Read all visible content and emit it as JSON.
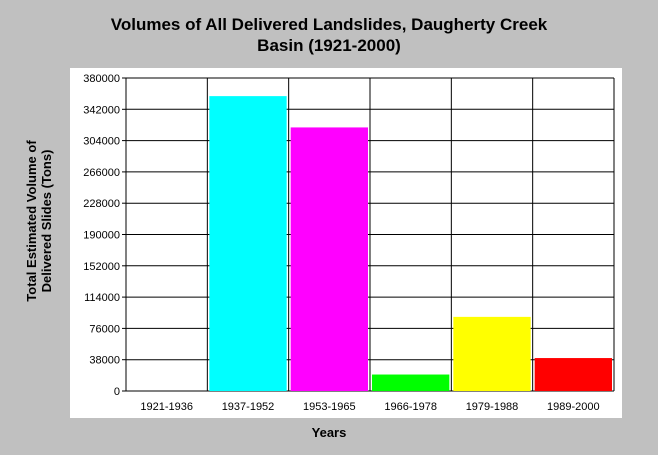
{
  "chart_data": {
    "type": "bar",
    "title_lines": [
      "Volumes of All Delivered Landslides, Daugherty Creek",
      "Basin (1921-2000)"
    ],
    "xlabel": "Years",
    "ylabel_lines": [
      "Total Estimated Volume of",
      "Delivered Slides (Tons)"
    ],
    "categories": [
      "1921-1936",
      "1937-1952",
      "1953-1965",
      "1966-1978",
      "1979-1988",
      "1989-2000"
    ],
    "values": [
      0,
      358000,
      320000,
      20000,
      90000,
      40000
    ],
    "colors": [
      "#00ffff",
      "#00ffff",
      "#ff00ff",
      "#00ff00",
      "#ffff00",
      "#ff0000"
    ],
    "yticks": [
      0,
      38000,
      76000,
      114000,
      152000,
      190000,
      228000,
      266000,
      304000,
      342000,
      380000
    ],
    "ylim": [
      0,
      380000
    ],
    "grid": true,
    "legend": false,
    "background": "#c0c0c0",
    "plot_background": "#ffffff"
  }
}
